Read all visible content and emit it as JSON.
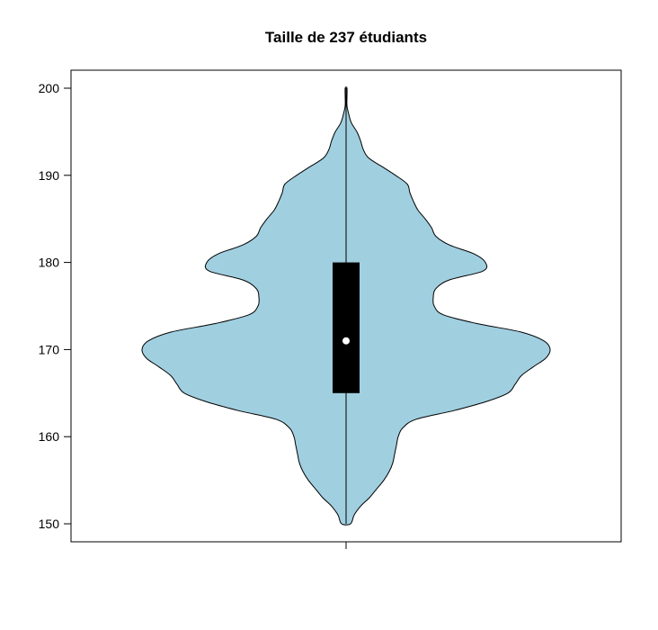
{
  "chart_data": {
    "type": "violin",
    "title": "Taille de 237 étudiants",
    "xlabel": "",
    "ylabel": "",
    "ylim": [
      148,
      202
    ],
    "yticks": [
      150,
      160,
      170,
      180,
      190,
      200
    ],
    "fill_color": "#a0cfe0",
    "box_color": "#000000",
    "median_color": "#ffffff",
    "grid": false,
    "legend": "none",
    "stats": {
      "min": 150,
      "q1": 165,
      "median": 171,
      "q3": 180,
      "max": 200
    },
    "density": {
      "y": [
        150,
        151,
        152,
        153,
        154,
        155,
        156,
        157,
        158,
        159,
        160,
        161,
        162,
        163,
        164,
        165,
        166,
        167,
        168,
        169,
        170,
        171,
        172,
        173,
        174,
        175,
        176,
        177,
        178,
        179,
        180,
        181,
        182,
        183,
        184,
        185,
        186,
        187,
        188,
        189,
        190,
        191,
        192,
        193,
        194,
        195,
        196,
        197,
        198,
        199,
        200
      ],
      "half_width": [
        0.05,
        0.09,
        0.16,
        0.26,
        0.34,
        0.42,
        0.48,
        0.52,
        0.54,
        0.56,
        0.58,
        0.63,
        0.78,
        1.2,
        1.55,
        1.8,
        1.88,
        1.95,
        2.08,
        2.22,
        2.27,
        2.2,
        1.95,
        1.45,
        1.08,
        0.98,
        0.97,
        1.0,
        1.15,
        1.52,
        1.55,
        1.42,
        1.15,
        1.0,
        0.95,
        0.88,
        0.8,
        0.75,
        0.71,
        0.68,
        0.55,
        0.4,
        0.25,
        0.19,
        0.16,
        0.12,
        0.06,
        0.03,
        0.01,
        0.01,
        0.01
      ]
    }
  }
}
